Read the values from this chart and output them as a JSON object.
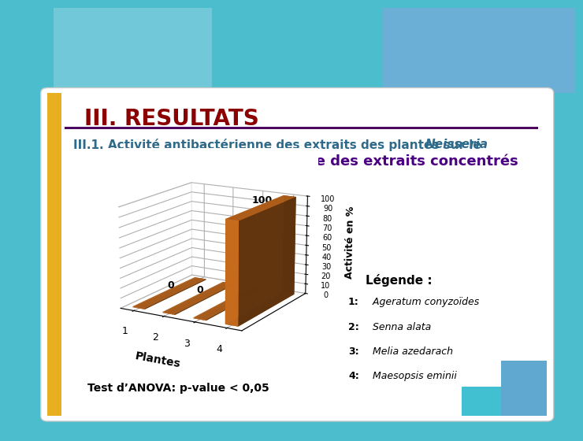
{
  "title_main": "III. RESULTATS",
  "title_main_color": "#8B0000",
  "title_main_fontsize": 20,
  "subtitle1": "III.1. Activité antibactérienne des extraits des plantes sur le ",
  "subtitle1_italic": "Neisseria",
  "subtitle1_color": "#2E6B8A",
  "subtitle1_fontsize": 11,
  "subtitle2": "1° Activité antibactérienne des extraits concentrés",
  "subtitle2_color": "#4B0082",
  "subtitle2_fontsize": 13,
  "bar_values": [
    0,
    0,
    0,
    100
  ],
  "bar_labels": [
    "1",
    "2",
    "3",
    "4"
  ],
  "bar_color": "#E07820",
  "xlabel": "Plantes",
  "ylabel": "Activité en %",
  "xlabel_fontsize": 10,
  "ylabel_fontsize": 9,
  "yticks": [
    0,
    10,
    20,
    30,
    40,
    50,
    60,
    70,
    80,
    90,
    100
  ],
  "ylim": [
    0,
    110
  ],
  "legende_title": "Légende :",
  "legende_entries": [
    "1: Ageratum conyzoïdes",
    "2: Senna alata",
    "3: Melia azedarach",
    "4: Maesopsis eminii"
  ],
  "anova_text": "Test d’ANOVA: p-value < 0,05",
  "bg_outer_color": "#4BBDCC",
  "bg_slide_color": "#FFFFFF",
  "left_strip_color": "#E8B020",
  "separator_color": "#4B0060",
  "bar_annotation_fontsize": 9
}
